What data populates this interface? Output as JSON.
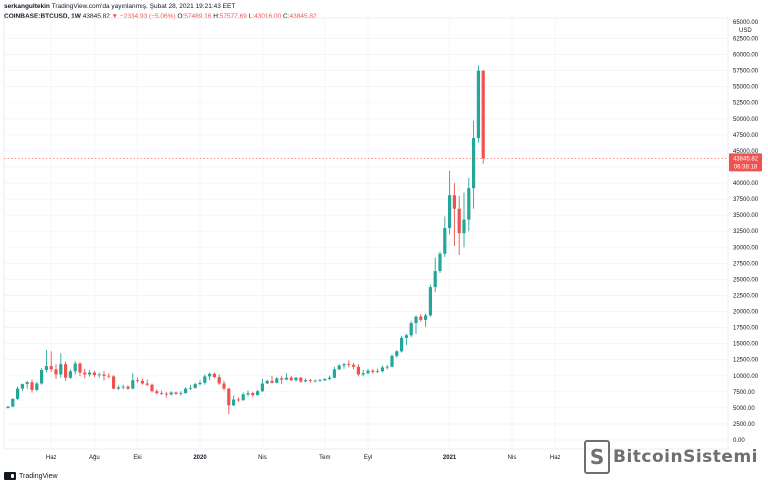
{
  "header": {
    "author": "serkangultekin",
    "published": "TradingView.com'da yayınlanmış, Şubat 28, 2021 19:21:43 EET",
    "symbol": "COINBASE:BTCUSD, 1W",
    "last": "43845.82",
    "change": "▼ −2334.93 (−5.06%)",
    "open_label": "O:",
    "open": "57489.16",
    "high_label": "H:",
    "high": "57577.69",
    "low_label": "L:",
    "low": "43016.00",
    "close_label": "C:",
    "close": "43845.82"
  },
  "footer": {
    "brand": "TradingView",
    "logo_icon": "tradingview-logo-icon"
  },
  "watermark": {
    "badge": "S",
    "text": "BitcoinSistemi",
    "icon": "bitcoin-sistemi-logo-icon"
  },
  "colors": {
    "up": "#26a69a",
    "down": "#ef5350",
    "grid": "#f0f3fa",
    "price_line": "#ef5350",
    "axis_text": "#131722"
  },
  "chart_data": {
    "type": "candlestick",
    "currency_label": "USD",
    "price_label": "43845.82",
    "countdown_label": "06:38:18",
    "ylim": [
      0,
      65000
    ],
    "grid": true,
    "y_ticks": [
      "0.00",
      "2500.00",
      "5000.00",
      "7500.00",
      "10000.00",
      "12500.00",
      "15000.00",
      "17500.00",
      "20000.00",
      "22500.00",
      "25000.00",
      "27500.00",
      "30000.00",
      "32500.00",
      "35000.00",
      "37500.00",
      "40000.00",
      "42500.00",
      "45000.00",
      "47500.00",
      "50000.00",
      "52500.00",
      "55000.00",
      "57500.00",
      "60000.00",
      "62500.00"
    ],
    "y_tick_values": [
      0,
      2500,
      5000,
      7500,
      10000,
      12500,
      15000,
      17500,
      20000,
      22500,
      25000,
      27500,
      30000,
      32500,
      35000,
      37500,
      40000,
      42500,
      45000,
      47500,
      50000,
      52500,
      55000,
      57500,
      60000,
      62500
    ],
    "top_tick_partial": "65000.00",
    "x_ticks": [
      {
        "label": "Haz",
        "index": 9,
        "bold": false
      },
      {
        "label": "Ağu",
        "index": 18,
        "bold": false
      },
      {
        "label": "Eki",
        "index": 27,
        "bold": false
      },
      {
        "label": "2020",
        "index": 40,
        "bold": true
      },
      {
        "label": "Nis",
        "index": 53,
        "bold": false
      },
      {
        "label": "Tem",
        "index": 66,
        "bold": false
      },
      {
        "label": "Eyl",
        "index": 75,
        "bold": false
      },
      {
        "label": "2021",
        "index": 92,
        "bold": true
      },
      {
        "label": "Nis",
        "index": 105,
        "bold": false
      },
      {
        "label": "Haz",
        "index": 114,
        "bold": false
      }
    ],
    "x_range_slots": [
      0,
      157
    ],
    "candles": [
      {
        "o": 5000,
        "h": 5300,
        "l": 4900,
        "c": 5200
      },
      {
        "o": 5200,
        "h": 6500,
        "l": 5100,
        "c": 6400
      },
      {
        "o": 6400,
        "h": 8300,
        "l": 6200,
        "c": 8000
      },
      {
        "o": 8000,
        "h": 8800,
        "l": 7600,
        "c": 8700
      },
      {
        "o": 8700,
        "h": 9200,
        "l": 8000,
        "c": 9000
      },
      {
        "o": 9000,
        "h": 9400,
        "l": 7400,
        "c": 7800
      },
      {
        "o": 7800,
        "h": 9000,
        "l": 7600,
        "c": 8800
      },
      {
        "o": 8800,
        "h": 11200,
        "l": 8600,
        "c": 10900
      },
      {
        "o": 10900,
        "h": 14000,
        "l": 10500,
        "c": 11500
      },
      {
        "o": 11500,
        "h": 13800,
        "l": 10600,
        "c": 11000
      },
      {
        "o": 11000,
        "h": 11800,
        "l": 9500,
        "c": 10200
      },
      {
        "o": 10200,
        "h": 13500,
        "l": 9700,
        "c": 11800
      },
      {
        "o": 11800,
        "h": 12200,
        "l": 9200,
        "c": 9700
      },
      {
        "o": 9700,
        "h": 11000,
        "l": 9500,
        "c": 10700
      },
      {
        "o": 10700,
        "h": 12300,
        "l": 10200,
        "c": 11900
      },
      {
        "o": 11900,
        "h": 12100,
        "l": 9900,
        "c": 10500
      },
      {
        "o": 10500,
        "h": 11100,
        "l": 9600,
        "c": 10200
      },
      {
        "o": 10200,
        "h": 10900,
        "l": 9900,
        "c": 10500
      },
      {
        "o": 10500,
        "h": 10800,
        "l": 9800,
        "c": 10100
      },
      {
        "o": 10100,
        "h": 10500,
        "l": 9700,
        "c": 10200
      },
      {
        "o": 10200,
        "h": 10700,
        "l": 9300,
        "c": 10000
      },
      {
        "o": 10000,
        "h": 10400,
        "l": 9600,
        "c": 9900
      },
      {
        "o": 9900,
        "h": 10100,
        "l": 7900,
        "c": 8000
      },
      {
        "o": 8000,
        "h": 8500,
        "l": 7800,
        "c": 8200
      },
      {
        "o": 8200,
        "h": 8600,
        "l": 7900,
        "c": 8300
      },
      {
        "o": 8300,
        "h": 8500,
        "l": 7800,
        "c": 8000
      },
      {
        "o": 8000,
        "h": 10400,
        "l": 7900,
        "c": 9300
      },
      {
        "o": 9300,
        "h": 9700,
        "l": 8900,
        "c": 9200
      },
      {
        "o": 9200,
        "h": 9600,
        "l": 8600,
        "c": 8800
      },
      {
        "o": 8800,
        "h": 9400,
        "l": 8400,
        "c": 8600
      },
      {
        "o": 8600,
        "h": 8800,
        "l": 7400,
        "c": 7600
      },
      {
        "o": 7600,
        "h": 7900,
        "l": 7100,
        "c": 7300
      },
      {
        "o": 7300,
        "h": 7700,
        "l": 7000,
        "c": 7200
      },
      {
        "o": 7200,
        "h": 7500,
        "l": 6600,
        "c": 7100
      },
      {
        "o": 7100,
        "h": 7600,
        "l": 6900,
        "c": 7400
      },
      {
        "o": 7400,
        "h": 7500,
        "l": 7000,
        "c": 7200
      },
      {
        "o": 7200,
        "h": 7600,
        "l": 6900,
        "c": 7300
      },
      {
        "o": 7300,
        "h": 8200,
        "l": 7200,
        "c": 8000
      },
      {
        "o": 8000,
        "h": 8600,
        "l": 7800,
        "c": 8100
      },
      {
        "o": 8100,
        "h": 8900,
        "l": 8000,
        "c": 8700
      },
      {
        "o": 8700,
        "h": 9300,
        "l": 8500,
        "c": 8900
      },
      {
        "o": 8900,
        "h": 10200,
        "l": 8600,
        "c": 9900
      },
      {
        "o": 9900,
        "h": 10500,
        "l": 9300,
        "c": 10300
      },
      {
        "o": 10300,
        "h": 10500,
        "l": 9600,
        "c": 9800
      },
      {
        "o": 9800,
        "h": 10200,
        "l": 8600,
        "c": 8800
      },
      {
        "o": 8800,
        "h": 9200,
        "l": 7700,
        "c": 8000
      },
      {
        "o": 8000,
        "h": 8100,
        "l": 4000,
        "c": 5400
      },
      {
        "o": 5400,
        "h": 6900,
        "l": 5300,
        "c": 6300
      },
      {
        "o": 6300,
        "h": 6600,
        "l": 5900,
        "c": 6200
      },
      {
        "o": 6200,
        "h": 7400,
        "l": 6100,
        "c": 7100
      },
      {
        "o": 7100,
        "h": 7700,
        "l": 6800,
        "c": 7300
      },
      {
        "o": 7300,
        "h": 7500,
        "l": 6700,
        "c": 7000
      },
      {
        "o": 7000,
        "h": 7800,
        "l": 6900,
        "c": 7600
      },
      {
        "o": 7600,
        "h": 9500,
        "l": 7500,
        "c": 8800
      },
      {
        "o": 8800,
        "h": 9400,
        "l": 8700,
        "c": 9200
      },
      {
        "o": 9200,
        "h": 10000,
        "l": 8800,
        "c": 8900
      },
      {
        "o": 8900,
        "h": 9800,
        "l": 8800,
        "c": 9600
      },
      {
        "o": 9600,
        "h": 9900,
        "l": 8700,
        "c": 9400
      },
      {
        "o": 9400,
        "h": 10400,
        "l": 9300,
        "c": 9700
      },
      {
        "o": 9700,
        "h": 10000,
        "l": 9200,
        "c": 9300
      },
      {
        "o": 9300,
        "h": 9800,
        "l": 9100,
        "c": 9700
      },
      {
        "o": 9700,
        "h": 9800,
        "l": 8900,
        "c": 9100
      },
      {
        "o": 9100,
        "h": 9600,
        "l": 9000,
        "c": 9300
      },
      {
        "o": 9300,
        "h": 9500,
        "l": 8900,
        "c": 9200
      },
      {
        "o": 9200,
        "h": 9400,
        "l": 9000,
        "c": 9250
      },
      {
        "o": 9250,
        "h": 9500,
        "l": 9100,
        "c": 9300
      },
      {
        "o": 9300,
        "h": 9600,
        "l": 9200,
        "c": 9500
      },
      {
        "o": 9500,
        "h": 10000,
        "l": 9300,
        "c": 9700
      },
      {
        "o": 9700,
        "h": 11400,
        "l": 9600,
        "c": 11000
      },
      {
        "o": 11000,
        "h": 11800,
        "l": 10900,
        "c": 11600
      },
      {
        "o": 11600,
        "h": 12000,
        "l": 11100,
        "c": 11800
      },
      {
        "o": 11800,
        "h": 12400,
        "l": 11300,
        "c": 11700
      },
      {
        "o": 11700,
        "h": 12000,
        "l": 11000,
        "c": 11400
      },
      {
        "o": 11400,
        "h": 11800,
        "l": 9900,
        "c": 10200
      },
      {
        "o": 10200,
        "h": 10900,
        "l": 9900,
        "c": 10400
      },
      {
        "o": 10400,
        "h": 11100,
        "l": 10200,
        "c": 10800
      },
      {
        "o": 10800,
        "h": 11000,
        "l": 10300,
        "c": 10600
      },
      {
        "o": 10600,
        "h": 11100,
        "l": 10400,
        "c": 10700
      },
      {
        "o": 10700,
        "h": 11600,
        "l": 10500,
        "c": 11300
      },
      {
        "o": 11300,
        "h": 11700,
        "l": 11000,
        "c": 11400
      },
      {
        "o": 11400,
        "h": 13300,
        "l": 11300,
        "c": 13100
      },
      {
        "o": 13100,
        "h": 14000,
        "l": 12800,
        "c": 13800
      },
      {
        "o": 13800,
        "h": 16200,
        "l": 13600,
        "c": 15900
      },
      {
        "o": 15900,
        "h": 16500,
        "l": 14800,
        "c": 16300
      },
      {
        "o": 16300,
        "h": 18500,
        "l": 16000,
        "c": 18200
      },
      {
        "o": 18200,
        "h": 19400,
        "l": 16500,
        "c": 19200
      },
      {
        "o": 19200,
        "h": 19600,
        "l": 18400,
        "c": 18700
      },
      {
        "o": 18700,
        "h": 19700,
        "l": 17600,
        "c": 19400
      },
      {
        "o": 19400,
        "h": 24200,
        "l": 19200,
        "c": 23800
      },
      {
        "o": 23800,
        "h": 28400,
        "l": 23000,
        "c": 26300
      },
      {
        "o": 26300,
        "h": 29300,
        "l": 26000,
        "c": 29000
      },
      {
        "o": 29000,
        "h": 34800,
        "l": 28500,
        "c": 33000
      },
      {
        "o": 33000,
        "h": 41900,
        "l": 32000,
        "c": 38100
      },
      {
        "o": 38100,
        "h": 40000,
        "l": 30200,
        "c": 36000
      },
      {
        "o": 36000,
        "h": 38000,
        "l": 28800,
        "c": 32200
      },
      {
        "o": 32200,
        "h": 38500,
        "l": 30000,
        "c": 34300
      },
      {
        "o": 34300,
        "h": 40800,
        "l": 32500,
        "c": 39200
      },
      {
        "o": 39200,
        "h": 49700,
        "l": 36000,
        "c": 47000
      },
      {
        "o": 47000,
        "h": 58300,
        "l": 46300,
        "c": 57500
      },
      {
        "o": 57489.16,
        "h": 57577.69,
        "l": 43016,
        "c": 43845.82
      }
    ]
  }
}
